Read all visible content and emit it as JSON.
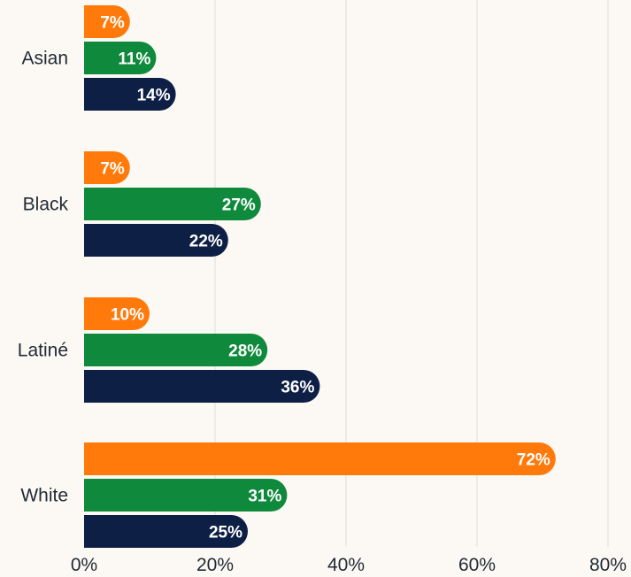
{
  "chart_data": {
    "type": "bar",
    "orientation": "horizontal",
    "categories": [
      "Asian",
      "Black",
      "Latiné",
      "White"
    ],
    "series": [
      {
        "values": [
          7,
          7,
          10,
          72
        ],
        "labels": [
          "7%",
          "7%",
          "10%",
          "72%"
        ],
        "color": "#ff7a0a"
      },
      {
        "values": [
          11,
          27,
          28,
          31
        ],
        "labels": [
          "11%",
          "27%",
          "28%",
          "31%"
        ],
        "color": "#0f8a3c"
      },
      {
        "values": [
          14,
          22,
          36,
          25
        ],
        "labels": [
          "14%",
          "22%",
          "36%",
          "25%"
        ],
        "color": "#0e1f45"
      }
    ],
    "xticks": [
      0,
      20,
      40,
      60,
      80
    ],
    "xtick_labels": [
      "0%",
      "20%",
      "40%",
      "60%",
      "80%"
    ],
    "xlim": [
      0,
      80
    ],
    "grid": true,
    "legend": "none"
  }
}
